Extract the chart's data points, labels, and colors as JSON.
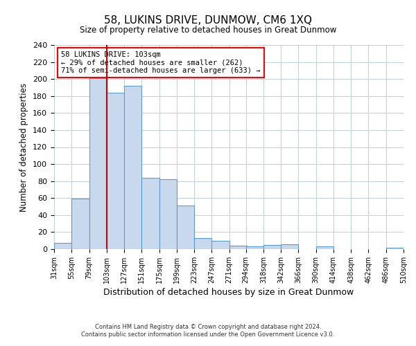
{
  "title": "58, LUKINS DRIVE, DUNMOW, CM6 1XQ",
  "subtitle": "Size of property relative to detached houses in Great Dunmow",
  "xlabel": "Distribution of detached houses by size in Great Dunmow",
  "ylabel": "Number of detached properties",
  "bin_edges": [
    31,
    55,
    79,
    103,
    127,
    151,
    175,
    199,
    223,
    247,
    271,
    294,
    318,
    342,
    366,
    390,
    414,
    438,
    462,
    486,
    510
  ],
  "counts": [
    7,
    59,
    201,
    184,
    192,
    84,
    82,
    51,
    13,
    10,
    4,
    3,
    5,
    6,
    0,
    3,
    0,
    0,
    0,
    2
  ],
  "bar_color": "#c9d9ed",
  "bar_edge_color": "#5b9bd5",
  "vline_x": 103,
  "vline_color": "#cc0000",
  "annotation_line1": "58 LUKINS DRIVE: 103sqm",
  "annotation_line2": "← 29% of detached houses are smaller (262)",
  "annotation_line3": "71% of semi-detached houses are larger (633) →",
  "ylim": [
    0,
    240
  ],
  "yticks": [
    0,
    20,
    40,
    60,
    80,
    100,
    120,
    140,
    160,
    180,
    200,
    220,
    240
  ],
  "background_color": "#ffffff",
  "grid_color": "#c0cfe0",
  "footer_line1": "Contains HM Land Registry data © Crown copyright and database right 2024.",
  "footer_line2": "Contains public sector information licensed under the Open Government Licence v3.0."
}
